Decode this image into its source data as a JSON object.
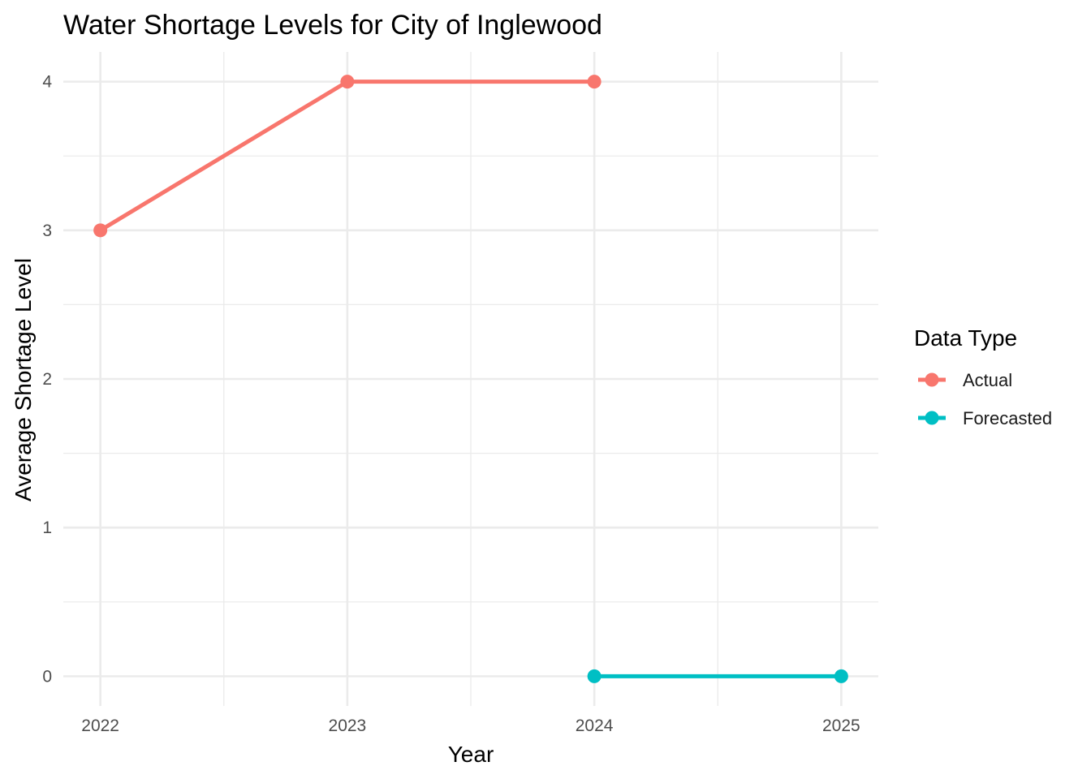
{
  "chart_data": {
    "type": "line",
    "title": "Water Shortage Levels for City of Inglewood",
    "xlabel": "Year",
    "ylabel": "Average Shortage Level",
    "x_ticks": [
      "2022",
      "2023",
      "2024",
      "2025"
    ],
    "y_ticks": [
      "0",
      "1",
      "2",
      "3",
      "4"
    ],
    "xlim": [
      2021.85,
      2025.15
    ],
    "ylim": [
      -0.2,
      4.2
    ],
    "grid": true,
    "legend": {
      "title": "Data Type",
      "position": "right"
    },
    "series": [
      {
        "name": "Actual",
        "color": "#F8766D",
        "x": [
          2022,
          2023,
          2024
        ],
        "y": [
          3,
          4,
          4
        ]
      },
      {
        "name": "Forecasted",
        "color": "#00BFC4",
        "x": [
          2024,
          2025
        ],
        "y": [
          0,
          0
        ]
      }
    ]
  }
}
